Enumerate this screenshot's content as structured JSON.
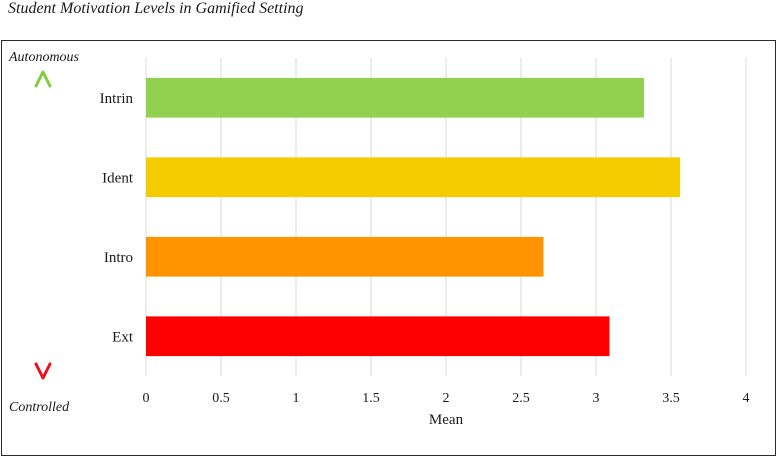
{
  "figure": {
    "title": "Student Motivation Levels in Gamified Setting"
  },
  "scale": {
    "top_label": "Autonomous",
    "bottom_label": "Controlled",
    "top_color": "#7fce3a",
    "mid_color": "#f2e62a",
    "bottom_color": "#e8141b"
  },
  "chart_data": {
    "type": "bar",
    "orientation": "horizontal",
    "title": "Student Motivation Levels in Gamified Setting",
    "xlabel": "Mean",
    "ylabel": "",
    "xlim": [
      0,
      4
    ],
    "xticks": [
      0,
      0.5,
      1,
      1.5,
      2,
      2.5,
      3,
      3.5,
      4
    ],
    "xtick_labels": [
      "0",
      "0.5",
      "1",
      "1.5",
      "2",
      "2.5",
      "3",
      "3.5",
      "4"
    ],
    "grid": true,
    "categories": [
      "Intrin",
      "Ident",
      "Intro",
      "Ext"
    ],
    "values": [
      3.32,
      3.56,
      2.65,
      3.09
    ],
    "colors": [
      "#92d050",
      "#f5cc00",
      "#ff9400",
      "#ff0000"
    ]
  }
}
